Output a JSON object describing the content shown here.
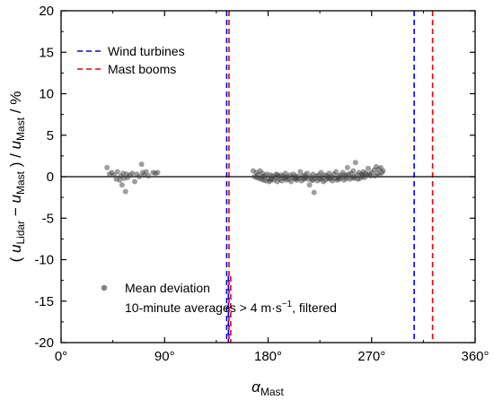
{
  "chart_data": {
    "type": "scatter",
    "xlabel": {
      "symbol": "α",
      "subscript": "Mast"
    },
    "ylabel": {
      "text": "( u_Lidar − u_Mast ) / u_Mast / %",
      "part1": "( ",
      "u1": "u",
      "sub1": "Lidar",
      "minus": " − ",
      "u2": "u",
      "sub2": "Mast",
      "part3": " ) / ",
      "u3": "u",
      "sub3": "Mast",
      "part4": " / %"
    },
    "xlim": [
      0,
      360
    ],
    "ylim": [
      -20,
      20
    ],
    "x_ticks": [
      0,
      90,
      180,
      270,
      360
    ],
    "x_tick_labels": [
      "0°",
      "90°",
      "180°",
      "270°",
      "360°"
    ],
    "y_ticks": [
      20,
      15,
      10,
      5,
      0,
      -5,
      -10,
      -15,
      -20
    ],
    "y_tick_labels": [
      "20",
      "15",
      "10",
      "5",
      "0",
      "-5",
      "-10",
      "-15",
      "-20"
    ],
    "reference_line_y": 0,
    "vertical_lines": [
      {
        "series": "Wind turbines",
        "x": 144,
        "ymin": -20,
        "ymax": 20,
        "color": "#0000ee"
      },
      {
        "series": "Mast booms",
        "x": 146,
        "ymin": -20,
        "ymax": 20,
        "color": "#ee0000"
      },
      {
        "series": "Wind turbines",
        "x": 145.5,
        "ymin": -20,
        "ymax": -12,
        "color": "#0000ee"
      },
      {
        "series": "Mast booms",
        "x": 147.5,
        "ymin": -20,
        "ymax": -12,
        "color": "#ee0000"
      },
      {
        "series": "Wind turbines",
        "x": 307,
        "ymin": -20,
        "ymax": 20,
        "color": "#0000ee"
      },
      {
        "series": "Mast booms",
        "x": 323,
        "ymin": -20,
        "ymax": 20,
        "color": "#ee0000"
      }
    ],
    "legend_top": [
      {
        "label": "Wind turbines",
        "color": "#0000ee",
        "style": "dashed"
      },
      {
        "label": "Mast booms",
        "color": "#ee0000",
        "style": "dashed"
      }
    ],
    "legend_bottom": {
      "label": "Mean deviation",
      "sub_prefix": "10-minute averages > 4 m·s",
      "sup": "−1",
      "sub_suffix": ", filtered",
      "marker_color": "#808080"
    },
    "legend_placement": [
      "top-left",
      "bottom-left"
    ],
    "grid": false,
    "series": [
      {
        "name": "Mean deviation",
        "color": "#404040",
        "opacity": 0.5,
        "points": [
          [
            40,
            1.1
          ],
          [
            42,
            0.3
          ],
          [
            44,
            0.5
          ],
          [
            46,
            0.2
          ],
          [
            48,
            -0.3
          ],
          [
            49,
            0.6
          ],
          [
            51,
            -0.4
          ],
          [
            52,
            0.1
          ],
          [
            53,
            -1.0
          ],
          [
            54,
            0.4
          ],
          [
            55,
            -0.2
          ],
          [
            56,
            -1.8
          ],
          [
            57,
            0.3
          ],
          [
            58,
            -0.1
          ],
          [
            60,
            0.2
          ],
          [
            62,
            0.4
          ],
          [
            64,
            -0.6
          ],
          [
            66,
            0.3
          ],
          [
            68,
            0.0
          ],
          [
            70,
            1.5
          ],
          [
            71,
            0.5
          ],
          [
            72,
            0.2
          ],
          [
            74,
            0.6
          ],
          [
            76,
            0.1
          ],
          [
            80,
            0.5
          ],
          [
            82,
            0.4
          ],
          [
            84,
            0.5
          ],
          [
            167,
            0.7
          ],
          [
            168,
            0.0
          ],
          [
            170,
            0.5
          ],
          [
            171,
            0.2
          ],
          [
            172,
            -0.2
          ],
          [
            173,
            0.7
          ],
          [
            174,
            -0.3
          ],
          [
            175,
            0.4
          ],
          [
            176,
            -0.4
          ],
          [
            177,
            0.1
          ],
          [
            178,
            -0.5
          ],
          [
            179,
            0.3
          ],
          [
            180,
            -0.2
          ],
          [
            181,
            -0.6
          ],
          [
            182,
            0.2
          ],
          [
            183,
            -0.3
          ],
          [
            184,
            0.1
          ],
          [
            185,
            -0.4
          ],
          [
            186,
            -0.1
          ],
          [
            187,
            0.3
          ],
          [
            188,
            -0.6
          ],
          [
            189,
            0.0
          ],
          [
            190,
            -0.3
          ],
          [
            191,
            0.2
          ],
          [
            192,
            -0.5
          ],
          [
            193,
            0.1
          ],
          [
            194,
            -0.2
          ],
          [
            195,
            0.4
          ],
          [
            196,
            -0.4
          ],
          [
            197,
            0.0
          ],
          [
            198,
            -0.3
          ],
          [
            199,
            0.2
          ],
          [
            200,
            -0.6
          ],
          [
            201,
            -0.1
          ],
          [
            202,
            0.3
          ],
          [
            203,
            -0.2
          ],
          [
            204,
            0.1
          ],
          [
            205,
            -0.4
          ],
          [
            206,
            0.0
          ],
          [
            207,
            -0.2
          ],
          [
            208,
            0.6
          ],
          [
            209,
            -0.5
          ],
          [
            210,
            0.1
          ],
          [
            211,
            -0.3
          ],
          [
            212,
            0.2
          ],
          [
            213,
            -0.1
          ],
          [
            214,
            0.4
          ],
          [
            215,
            -0.3
          ],
          [
            216,
            -1.0
          ],
          [
            217,
            0.0
          ],
          [
            218,
            -0.4
          ],
          [
            219,
            0.3
          ],
          [
            220,
            -1.9
          ],
          [
            221,
            -0.2
          ],
          [
            222,
            0.1
          ],
          [
            223,
            -0.5
          ],
          [
            224,
            0.2
          ],
          [
            225,
            -0.3
          ],
          [
            226,
            0.5
          ],
          [
            227,
            -0.1
          ],
          [
            228,
            -0.6
          ],
          [
            229,
            0.2
          ],
          [
            230,
            -0.4
          ],
          [
            231,
            0.1
          ],
          [
            232,
            -0.2
          ],
          [
            233,
            0.4
          ],
          [
            234,
            -0.3
          ],
          [
            235,
            0.0
          ],
          [
            236,
            -0.5
          ],
          [
            237,
            0.3
          ],
          [
            238,
            -0.2
          ],
          [
            239,
            0.6
          ],
          [
            240,
            -0.4
          ],
          [
            241,
            0.1
          ],
          [
            242,
            -0.3
          ],
          [
            243,
            0.2
          ],
          [
            244,
            -0.1
          ],
          [
            245,
            0.5
          ],
          [
            246,
            -0.4
          ],
          [
            247,
            0.2
          ],
          [
            248,
            -0.2
          ],
          [
            249,
            1.1
          ],
          [
            250,
            0.3
          ],
          [
            251,
            -0.3
          ],
          [
            252,
            0.4
          ],
          [
            253,
            -0.1
          ],
          [
            254,
            0.7
          ],
          [
            255,
            0.0
          ],
          [
            256,
            1.7
          ],
          [
            257,
            0.2
          ],
          [
            258,
            -0.3
          ],
          [
            259,
            0.5
          ],
          [
            260,
            -0.2
          ],
          [
            261,
            0.3
          ],
          [
            262,
            0.0
          ],
          [
            263,
            0.6
          ],
          [
            264,
            -0.1
          ],
          [
            265,
            0.4
          ],
          [
            266,
            0.2
          ],
          [
            267,
            1.0
          ],
          [
            268,
            0.3
          ],
          [
            270,
            0.5
          ],
          [
            272,
            0.8
          ],
          [
            273,
            0.1
          ],
          [
            274,
            1.2
          ],
          [
            275,
            0.4
          ],
          [
            276,
            0.9
          ],
          [
            277,
            0.2
          ],
          [
            278,
            1.1
          ],
          [
            279,
            0.5
          ],
          [
            280,
            0.7
          ],
          [
            170,
            -0.1
          ],
          [
            175,
            0.0
          ],
          [
            182,
            -0.4
          ],
          [
            188,
            0.2
          ],
          [
            195,
            -0.1
          ],
          [
            204,
            -0.3
          ],
          [
            212,
            -0.2
          ],
          [
            219,
            -0.4
          ],
          [
            226,
            -0.2
          ],
          [
            233,
            -0.1
          ],
          [
            241,
            -0.2
          ],
          [
            248,
            0.1
          ],
          [
            255,
            -0.2
          ],
          [
            262,
            0.2
          ],
          [
            269,
            0.1
          ]
        ]
      }
    ]
  }
}
